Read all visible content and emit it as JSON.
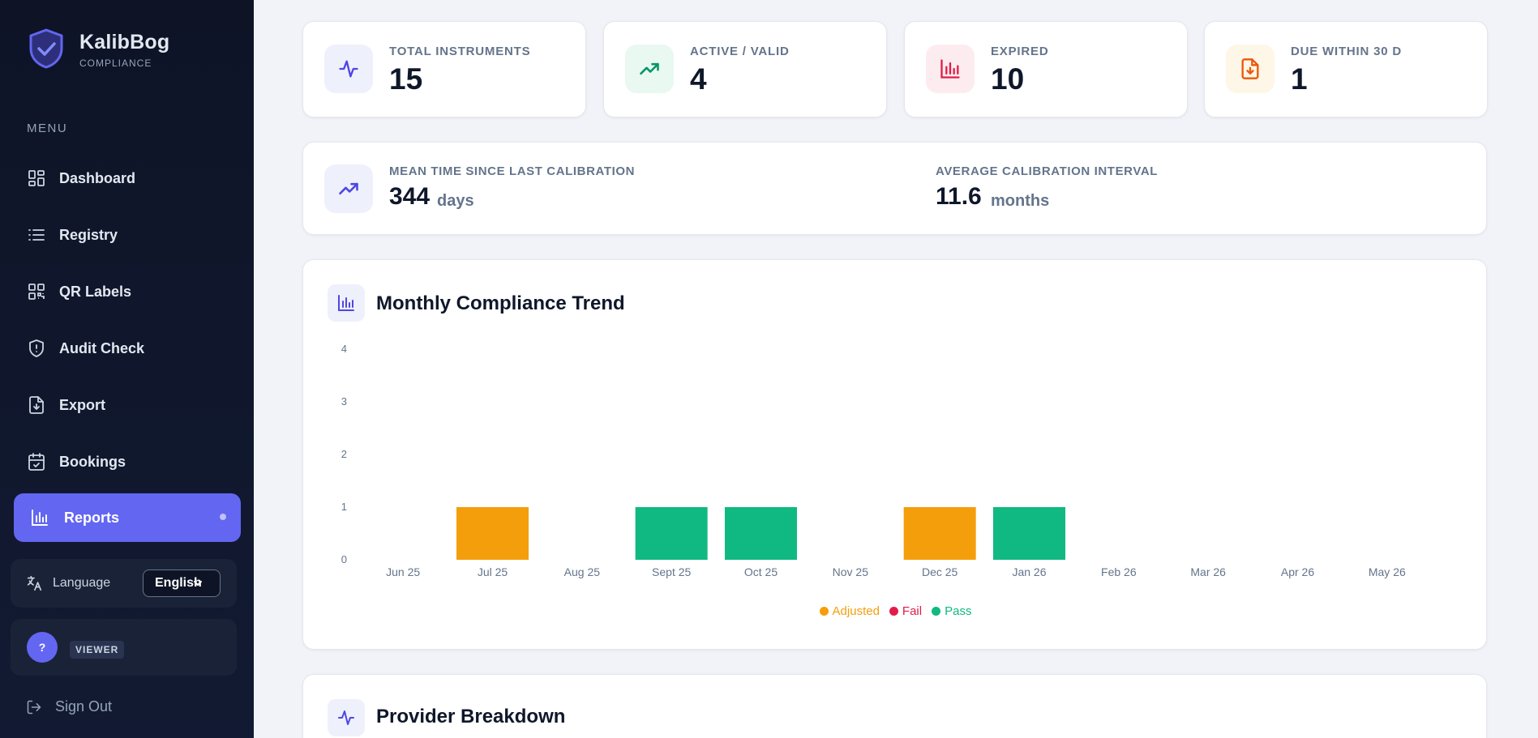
{
  "brand": {
    "name": "KalibBog",
    "subtitle": "COMPLIANCE"
  },
  "sidebar": {
    "menu_title": "MENU",
    "items": [
      {
        "label": "Dashboard",
        "icon": "dashboard-icon"
      },
      {
        "label": "Registry",
        "icon": "list-icon"
      },
      {
        "label": "QR Labels",
        "icon": "qr-icon"
      },
      {
        "label": "Audit Check",
        "icon": "shield-alert-icon"
      },
      {
        "label": "Export",
        "icon": "file-download-icon"
      },
      {
        "label": "Bookings",
        "icon": "calendar-check-icon"
      },
      {
        "label": "Reports",
        "icon": "bar-chart-icon",
        "active": true
      }
    ],
    "language": {
      "label": "Language",
      "value": "English"
    },
    "user": {
      "avatar": "?",
      "role": "VIEWER"
    },
    "signout": "Sign Out"
  },
  "stats": [
    {
      "label": "TOTAL INSTRUMENTS",
      "value": "15",
      "color": "#4f46e5",
      "bg": "#eef0fb",
      "icon": "activity-icon"
    },
    {
      "label": "ACTIVE / VALID",
      "value": "4",
      "color": "#059669",
      "bg": "#e9f8f1",
      "icon": "trending-up-icon"
    },
    {
      "label": "EXPIRED",
      "value": "10",
      "color": "#e11d48",
      "bg": "#fdecef",
      "icon": "bar-chart-icon"
    },
    {
      "label": "DUE WITHIN 30 D",
      "value": "1",
      "color": "#ea580c",
      "bg": "#fef6e7",
      "icon": "file-download-icon"
    }
  ],
  "metrics": {
    "mean_label": "MEAN TIME SINCE LAST CALIBRATION",
    "mean_value": "344",
    "mean_unit": "days",
    "interval_label": "AVERAGE CALIBRATION INTERVAL",
    "interval_value": "11.6",
    "interval_unit": "months"
  },
  "chart_section": {
    "title": "Monthly Compliance Trend"
  },
  "chart_data": {
    "type": "bar",
    "title": "Monthly Compliance Trend",
    "categories": [
      "Jun 25",
      "Jul 25",
      "Aug 25",
      "Sept 25",
      "Oct 25",
      "Nov 25",
      "Dec 25",
      "Jan 26",
      "Feb 26",
      "Mar 26",
      "Apr 26",
      "May 26"
    ],
    "series": [
      {
        "name": "Adjusted",
        "color": "#f59e0b",
        "values": [
          0,
          1,
          0,
          0,
          0,
          0,
          1,
          0,
          0,
          0,
          0,
          0
        ]
      },
      {
        "name": "Fail",
        "color": "#e11d48",
        "values": [
          0,
          0,
          0,
          0,
          0,
          0,
          0,
          0,
          0,
          0,
          0,
          0
        ]
      },
      {
        "name": "Pass",
        "color": "#10b981",
        "values": [
          0,
          0,
          0,
          1,
          1,
          0,
          0,
          1,
          0,
          0,
          0,
          0
        ]
      }
    ],
    "yticks": [
      0,
      1,
      2,
      3,
      4
    ],
    "ylim": [
      0,
      4
    ],
    "stacked": true,
    "legend": "bottom-center"
  },
  "provider_section": {
    "title": "Provider Breakdown"
  }
}
